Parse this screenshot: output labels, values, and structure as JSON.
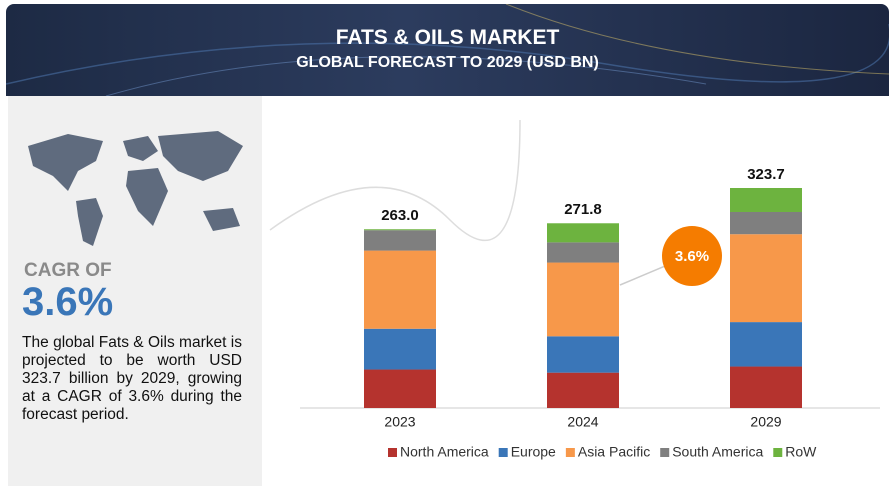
{
  "header": {
    "title": "FATS & OILS MARKET",
    "subtitle": "GLOBAL FORECAST TO 2029 (USD BN)"
  },
  "summary": {
    "cagr_label": "CAGR OF",
    "cagr": "3.6%",
    "text": "The global Fats & Oils market is projected to be worth USD 323.7 billion by 2029, growing at a CAGR of 3.6% during the forecast period."
  },
  "chart_data": {
    "type": "bar",
    "stacked": true,
    "categories": [
      "2023",
      "2024",
      "2029"
    ],
    "series": [
      {
        "name": "North America",
        "color": "#b5332e",
        "values": [
          56.6,
          52.0,
          61.0
        ]
      },
      {
        "name": "Europe",
        "color": "#3a76b8",
        "values": [
          60.0,
          53.5,
          65.4
        ]
      },
      {
        "name": "Asia Pacific",
        "color": "#f7984a",
        "values": [
          115.0,
          108.5,
          129.3
        ]
      },
      {
        "name": "South America",
        "color": "#7f7f7f",
        "values": [
          30.0,
          29.7,
          32.7
        ]
      },
      {
        "name": "RoW",
        "color": "#6db33f",
        "values": [
          1.4,
          28.1,
          35.3
        ]
      }
    ],
    "totals": [
      263.0,
      271.8,
      323.7
    ],
    "total_labels": [
      "263.0",
      "271.8",
      "323.7"
    ],
    "annotation": "3.6%",
    "annotation_color": "#f57c00"
  }
}
